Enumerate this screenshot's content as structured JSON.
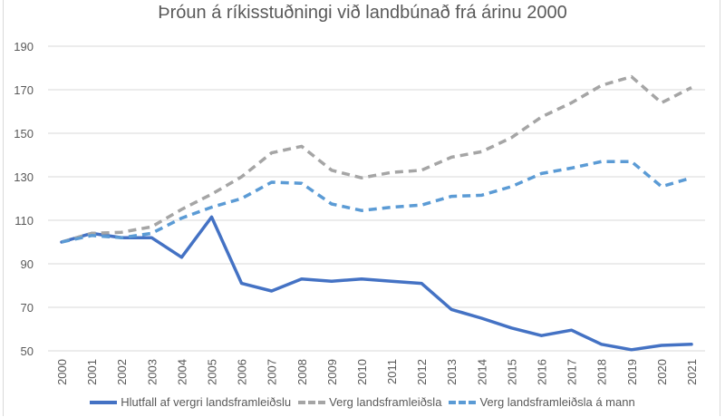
{
  "chart_data": {
    "type": "line",
    "title": "Þróun á ríkisstuðningi við landbúnað frá árinu 2000",
    "xlabel": "",
    "ylabel": "",
    "ylim": [
      50,
      190
    ],
    "yticks": [
      50,
      70,
      90,
      110,
      130,
      150,
      170,
      190
    ],
    "grid": true,
    "legend_position": "bottom",
    "categories": [
      "2000",
      "2001",
      "2002",
      "2003",
      "2004",
      "2005",
      "2006",
      "2007",
      "2008",
      "2009",
      "2010",
      "2011",
      "2012",
      "2013",
      "2014",
      "2015",
      "2016",
      "2017",
      "2018",
      "2019",
      "2020",
      "2021"
    ],
    "series": [
      {
        "name": "Hlutfall af vergri landsframleiðslu",
        "style": "solid",
        "color": "#4472c4",
        "values": [
          100,
          104,
          102,
          102,
          93,
          111.5,
          81,
          77.5,
          83,
          82,
          83,
          82,
          81,
          69,
          65,
          60.5,
          57,
          59.5,
          53,
          50.5,
          52.5,
          53
        ]
      },
      {
        "name": "Verg landsframleiðsla",
        "style": "dashed",
        "color": "#a5a5a5",
        "values": [
          100,
          104,
          104.5,
          107,
          115,
          122,
          130,
          141,
          144,
          133,
          129.5,
          132,
          133,
          139,
          141.5,
          148,
          157.5,
          164,
          172,
          176,
          164,
          171
        ]
      },
      {
        "name": "Verg landsframleiðsla á mann",
        "style": "dashed",
        "color": "#5b9bd5",
        "values": [
          100,
          103,
          102,
          104,
          111,
          116,
          120,
          127.5,
          127,
          117.5,
          114.5,
          116,
          117,
          121,
          121.5,
          125.5,
          131.5,
          134,
          137,
          137,
          125.5,
          129.5
        ]
      }
    ]
  }
}
